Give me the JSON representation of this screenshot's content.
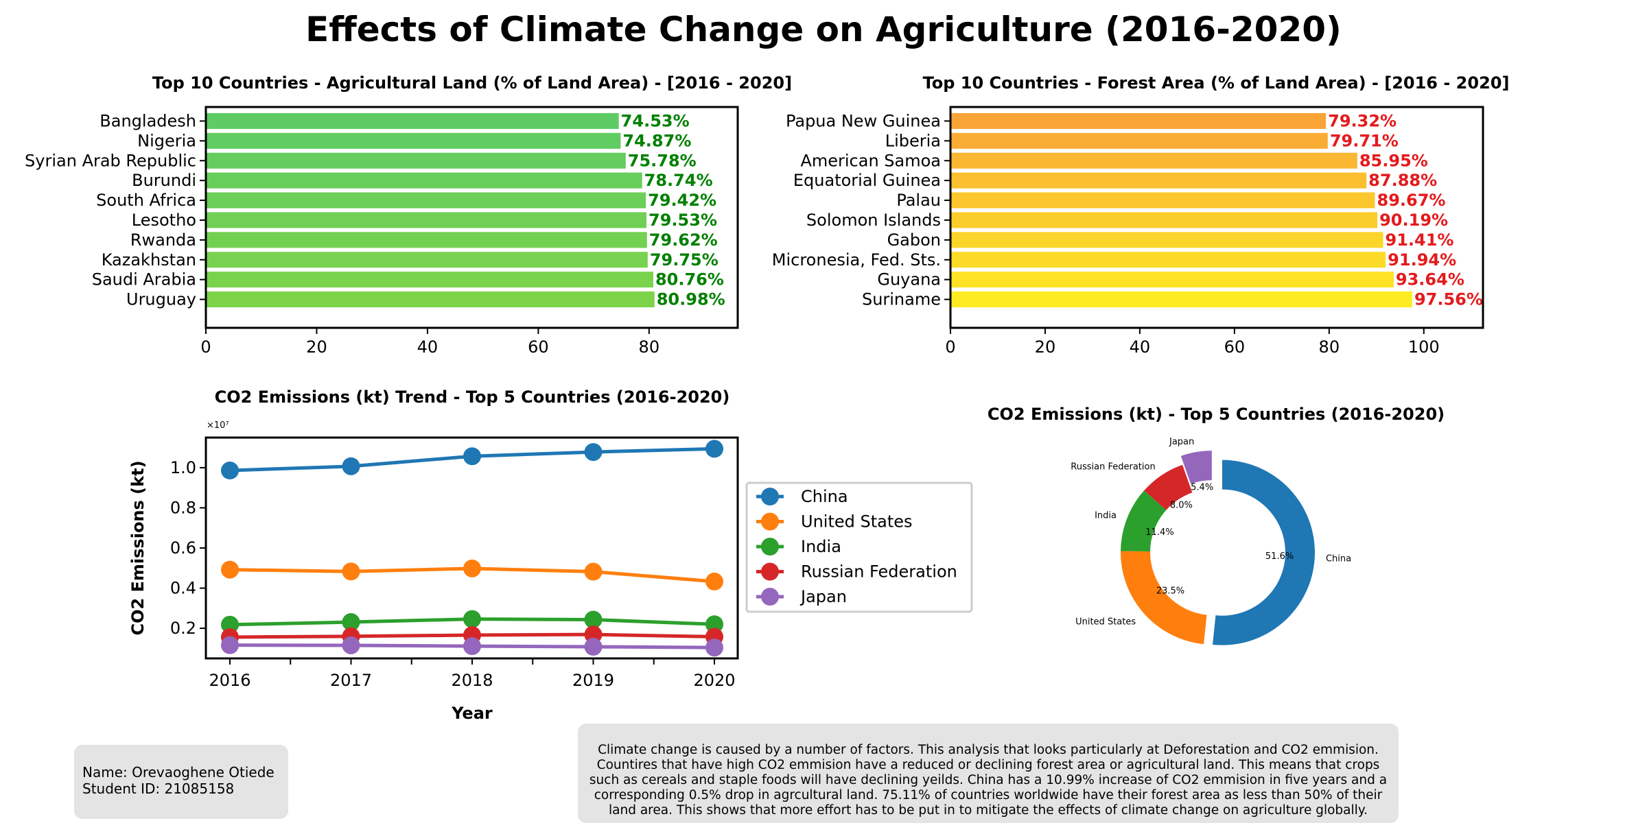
{
  "main_title": "Effects of Climate Change on Agriculture (2016-2020)",
  "name_box": {
    "name_line": "Name: Orevaoghene Otiede",
    "id_line": "Student ID: 21085158"
  },
  "description": "Climate change is caused by a number of factors. This analysis that looks particularly at Deforestation and CO2 emmision. Countires that have high CO2 emmision have a reduced or declining forest area or agricultural land. This means that crops such as cereals and staple foods will have declining yeilds. China has a 10.99% increase of CO2 emmision in five years and a corresponding 0.5% drop in agrcultural land. 75.11% of countries worldwide have their forest area as less than 50% of their land area. This shows that more effort has to be put in to mitigate the effects of climate change on agriculture globally.",
  "chart_data": [
    {
      "type": "bar",
      "orientation": "horizontal",
      "title": "Top 10 Countries - Agricultural Land (% of Land Area) - [2016 - 2020]",
      "categories": [
        "Bangladesh",
        "Nigeria",
        "Syrian Arab Republic",
        "Burundi",
        "South Africa",
        "Lesotho",
        "Rwanda",
        "Kazakhstan",
        "Saudi Arabia",
        "Uruguay"
      ],
      "values": [
        74.53,
        74.87,
        75.78,
        78.74,
        79.42,
        79.53,
        79.62,
        79.75,
        80.76,
        80.98
      ],
      "value_labels": [
        "74.53%",
        "74.87%",
        "75.78%",
        "78.74%",
        "79.42%",
        "79.53%",
        "79.62%",
        "79.75%",
        "80.76%",
        "80.98%"
      ],
      "xticks": [
        "0",
        "20",
        "40",
        "60",
        "80"
      ],
      "xlim": [
        0,
        96
      ],
      "bar_colors": [
        "#5ecb64",
        "#61cc61",
        "#64cd5e",
        "#68ce5b",
        "#6bcf58",
        "#6fd055",
        "#73d152",
        "#77d24f",
        "#7ad34c",
        "#7ed449"
      ],
      "label_color": "#008000"
    },
    {
      "type": "bar",
      "orientation": "horizontal",
      "title": "Top 10 Countries - Forest Area (% of Land Area) - [2016 - 2020]",
      "categories": [
        "Papua New Guinea",
        "Liberia",
        "American Samoa",
        "Equatorial Guinea",
        "Palau",
        "Solomon Islands",
        "Gabon",
        "Micronesia, Fed. Sts.",
        "Guyana",
        "Suriname"
      ],
      "values": [
        79.32,
        79.71,
        85.95,
        87.88,
        89.67,
        90.19,
        91.41,
        91.94,
        93.64,
        97.56
      ],
      "value_labels": [
        "79.32%",
        "79.71%",
        "85.95%",
        "87.88%",
        "89.67%",
        "90.19%",
        "91.41%",
        "91.94%",
        "93.64%",
        "97.56%"
      ],
      "xticks": [
        "0",
        "20",
        "40",
        "60",
        "80",
        "100"
      ],
      "xlim": [
        0,
        112.5
      ],
      "bar_colors": [
        "#f8a437",
        "#f9ad34",
        "#fab732",
        "#fbbf2f",
        "#fbc72d",
        "#fbcd2b",
        "#fcd52a",
        "#fcdb28",
        "#fde227",
        "#fdec24"
      ],
      "label_color": "#e41a1c"
    },
    {
      "type": "line",
      "title": "CO2 Emissions (kt) Trend - Top 5 Countries (2016-2020)",
      "xlabel": "Year",
      "ylabel": "CO2 Emissions (kt)",
      "offset_label": "×10⁷",
      "x": [
        "2016",
        "2017",
        "2018",
        "2019",
        "2020"
      ],
      "yticks": [
        "0.2",
        "0.4",
        "0.6",
        "0.8",
        "1.0"
      ],
      "ylim": [
        500000.0,
        11500000.0
      ],
      "series": [
        {
          "name": "China",
          "color": "#1f77b4",
          "values": [
            9860000.0,
            10070000.0,
            10570000.0,
            10780000.0,
            10940000.0
          ]
        },
        {
          "name": "United States",
          "color": "#ff7f0e",
          "values": [
            4920000.0,
            4830000.0,
            4980000.0,
            4820000.0,
            4330000.0
          ]
        },
        {
          "name": "India",
          "color": "#2ca02c",
          "values": [
            2180000.0,
            2310000.0,
            2460000.0,
            2430000.0,
            2200000.0
          ]
        },
        {
          "name": "Russian Federation",
          "color": "#d62728",
          "values": [
            1560000.0,
            1600000.0,
            1660000.0,
            1690000.0,
            1580000.0
          ]
        },
        {
          "name": "Japan",
          "color": "#9467bd",
          "values": [
            1160000.0,
            1150000.0,
            1110000.0,
            1080000.0,
            1040000.0
          ]
        }
      ],
      "legend_position": "right"
    },
    {
      "type": "pie",
      "style": "donut",
      "title": "CO2 Emissions (kt) - Top 5 Countries (2016-2020)",
      "labels": [
        "China",
        "United States",
        "India",
        "Russian Federation",
        "Japan"
      ],
      "values": [
        51.6,
        23.5,
        11.4,
        8.0,
        5.4
      ],
      "pct_labels": [
        "51.6%",
        "23.5%",
        "11.4%",
        "8.0%",
        "5.4%"
      ],
      "colors": [
        "#1f77b4",
        "#ff7f0e",
        "#2ca02c",
        "#d62728",
        "#9467bd"
      ],
      "exploded": [
        "China",
        "Japan"
      ]
    }
  ]
}
